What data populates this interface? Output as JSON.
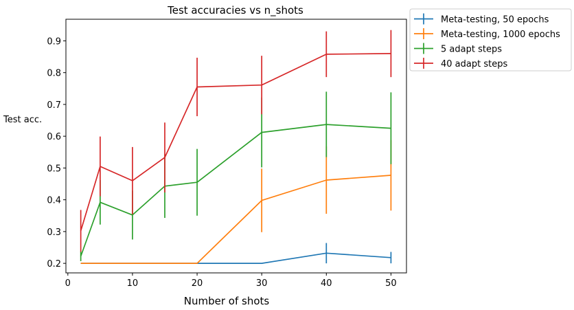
{
  "chart_data": {
    "type": "line",
    "title": "Test accuracies vs n_shots",
    "xlabel": "Number of shots",
    "ylabel": "Test acc.",
    "xlim": [
      -0.3,
      52.4
    ],
    "ylim": [
      0.17,
      0.968
    ],
    "xticks": [
      0,
      10,
      20,
      30,
      40,
      50
    ],
    "yticks": [
      0.2,
      0.3,
      0.4,
      0.5,
      0.6,
      0.7,
      0.8,
      0.9
    ],
    "xtick_labels": [
      "0",
      "10",
      "20",
      "30",
      "40",
      "50"
    ],
    "ytick_labels": [
      "0.2",
      "0.3",
      "0.4",
      "0.5",
      "0.6",
      "0.7",
      "0.8",
      "0.9"
    ],
    "grid": false,
    "legend_position": "outside-top-right",
    "series": [
      {
        "name": "Meta-testing, 50 epochs",
        "color": "#1f77b4",
        "x": [
          2,
          20,
          30,
          40,
          50
        ],
        "y": [
          0.2,
          0.2,
          0.2,
          0.232,
          0.218
        ],
        "err": [
          0.0,
          0.0,
          0.0,
          0.032,
          0.018
        ]
      },
      {
        "name": "Meta-testing, 1000 epochs",
        "color": "#ff7f0e",
        "x": [
          2,
          20,
          30,
          40,
          50
        ],
        "y": [
          0.2,
          0.2,
          0.398,
          0.462,
          0.477
        ],
        "err": [
          0.0,
          0.0,
          0.1,
          0.106,
          0.111
        ]
      },
      {
        "name": "5 adapt steps",
        "color": "#2ca02c",
        "x": [
          2,
          5,
          10,
          15,
          20,
          30,
          40,
          50
        ],
        "y": [
          0.222,
          0.392,
          0.352,
          0.443,
          0.455,
          0.612,
          0.637,
          0.625
        ],
        "err": [
          0.015,
          0.07,
          0.077,
          0.1,
          0.105,
          0.11,
          0.103,
          0.113
        ]
      },
      {
        "name": "40 adapt steps",
        "color": "#d62728",
        "x": [
          2,
          5,
          10,
          15,
          20,
          30,
          40,
          50
        ],
        "y": [
          0.302,
          0.505,
          0.46,
          0.533,
          0.755,
          0.761,
          0.858,
          0.86
        ],
        "err": [
          0.066,
          0.094,
          0.106,
          0.11,
          0.092,
          0.092,
          0.072,
          0.074
        ]
      }
    ]
  }
}
